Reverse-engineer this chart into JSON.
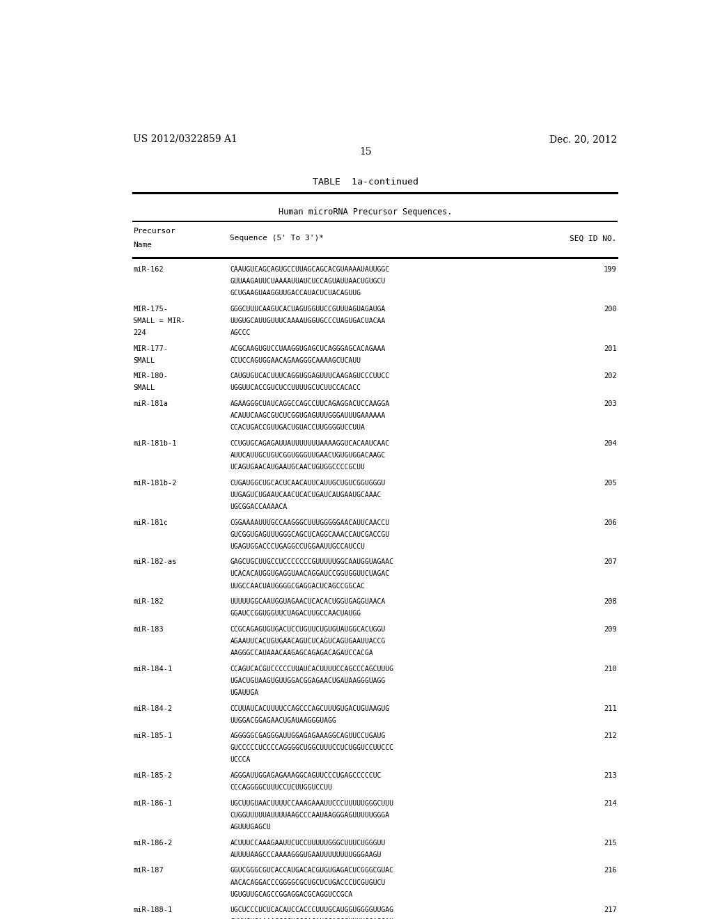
{
  "background_color": "#ffffff",
  "page_width": 10.24,
  "page_height": 13.2,
  "header_left": "US 2012/0322859 A1",
  "header_right": "Dec. 20, 2012",
  "page_number": "15",
  "table_title": "TABLE  1a-continued",
  "table_subtitle": "Human microRNA Precursor Sequences.",
  "entries": [
    {
      "name": "miR-162",
      "seq": "CAAUGUCAGCAGUGCCUUAGCAGCACGUAAAAUAUUGGC\nGUUAAGAUUCUAAAAUUAUCUCCAGUAUUAACUGUGCU\nGCUGAAGUAAGGUUGACCAUACUCUACAGUUG",
      "seq_id": "199"
    },
    {
      "name": "MIR-175-\nSMALL = MIR-\n224",
      "seq": "GGGCUUUCAAGUCACUAGUGGUUCCGUUUAGUAGAUGA\nUUGUGCAUUGUUUCAAAAUGGUGCCCUAGUGACUACAA\nAGCCC",
      "seq_id": "200"
    },
    {
      "name": "MIR-177-\nSMALL",
      "seq": "ACGCAAGUGUCCUAAGGUGAGCUCAGGGAGCACAGAAA\nCCUCCAGUGGAACAGAAGGGCAAAAGCUCAUU",
      "seq_id": "201"
    },
    {
      "name": "MIR-180-\nSMALL",
      "seq": "CAUGUGUCACUUUCAGGUGGAGUUUCAAGAGUCCCUUCC\nUGGUUCACCGUCUCCUUUUGCUCUUCCACACC",
      "seq_id": "202"
    },
    {
      "name": "miR-181a",
      "seq": "AGAAGGGCUAUCAGGCCAGCCUUCAGAGGACUCCAAGGA\nACAUUCAAGCGUCUCGGUGAGUUUGGGAUUUGAAAAAA\nCCACUGACCGUUGACUGUACCUUGGGGUCCUUA",
      "seq_id": "203"
    },
    {
      "name": "miR-181b-1",
      "seq": "CCUGUGCAGAGAUUAUUUUUUUAAAAGGUCACAAUCAAC\nAUUCAUUGCUGUCGGUGGGUUGAACUGUGUGGACAAGC\nUCAGUGAACAUGAAUGCAACUGUGGCCCCGCUU",
      "seq_id": "204"
    },
    {
      "name": "miR-181b-2",
      "seq": "CUGAUGGCUGCACUCAACAUUCAUUGCUGUCGGUGGGU\nUUGAGUCUGAAUCAACUCACUGAUCAUGAAUGCAAAC\nUGCGGACCAAAACA",
      "seq_id": "205"
    },
    {
      "name": "miR-181c",
      "seq": "CGGAAAAUUUGCCAAGGGCUUUGGGGGAACAUUCAACCU\nGUCGGUGAGUUUGGGCAGCUCAGGCAAACCAUCGACCGU\nUGAGUGGACCCUGAGGCCUGGAAUUGCCAUCCU",
      "seq_id": "206"
    },
    {
      "name": "miR-182-as",
      "seq": "GAGCUGCUUGCCUCCCCCCCGUUUUUGGCAAUGGUAGAAC\nUCACACAUGGUGAGGUAACAGGAUCCGGUGGUUCUAGAC\nUUGCCAACUAUGGGGCGAGGACUCAGCCGGCAC",
      "seq_id": "207"
    },
    {
      "name": "miR-182",
      "seq": "UUUUUGGCAAUGGUAGAACUCACACUGGUGAGGUAACA\nGGAUCCGGUGGUUCUAGACUUGCCAACUAUGG",
      "seq_id": "208"
    },
    {
      "name": "miR-183",
      "seq": "CCGCAGAGUGUGACUCCUGUUCUGUGUAUGGCACUGGU\nAGAAUUCACUGUGAACAGUCUCAGUCAGUGAAUUACCG\nAAGGGCCAUAAACAAGAGCAGAGACAGAUCCACGA",
      "seq_id": "209"
    },
    {
      "name": "miR-184-1",
      "seq": "CCAGUCACGUCCCCCUUAUCACUUUUCCAGCCCAGCUUUG\nUGACUGUAAGUGUUGGACGGAGAACUGAUAAGGGUAGG\nUGAUUGA",
      "seq_id": "210"
    },
    {
      "name": "miR-184-2",
      "seq": "CCUUAUCACUUUUCCAGCCCAGCUUUGUGACUGUAAGUG\nUUGGACGGAGAACUGAUAAGGGUAGG",
      "seq_id": "211"
    },
    {
      "name": "miR-185-1",
      "seq": "AGGGGGCGAGGGAUUGGAGAGAAAGGCAGUUCCUGAUG\nGUCCCCCUCCCCAGGGGCUGGCUUUCCUCUGGUCCUUCCC\nUCCCA",
      "seq_id": "212"
    },
    {
      "name": "miR-185-2",
      "seq": "AGGGAUUGGAGAGAAAGGCAGUUCCCUGAGCCCCCUC\nCCCAGGGGCUUUCCUCUUGGUCCUU",
      "seq_id": "213"
    },
    {
      "name": "miR-186-1",
      "seq": "UGCUUGUAACUUUUCCAAAGAAAUUCCCUUUUUGGGCUUU\nCUGGUUUUUAUUUUAAGCCCAAUAAGGGAGUUUUUGGGA\nAGUUUGAGCU",
      "seq_id": "214"
    },
    {
      "name": "miR-186-2",
      "seq": "ACUUUCCAAAGAAUUCUCCUUUUUGGGCUUUCUGGGUU\nAUUUUAAGCCCAAAAGGGUGAAUUUUUUUUGGGAAGU",
      "seq_id": "215"
    },
    {
      "name": "miR-187",
      "seq": "GGUCGGGCGUCACCAUGACACGUGUGAGACUCGGGCGUAC\nAACACAGGACCCGGGGCGCUGCUCUGACCCUCGUGUCU\nUGUGUUGCAGCCGGAGGACGCAGGUCCGCA",
      "seq_id": "216"
    },
    {
      "name": "miR-188-1",
      "seq": "UGCUCCCUCUCACAUCCACCCUUUGCAUGGUGGGGUUGAG\nCUUUCUGAAAACCCCUCCCACAUGCAGGGUUUUGCAGGAU\nGGCGAGCC",
      "seq_id": "217"
    }
  ]
}
